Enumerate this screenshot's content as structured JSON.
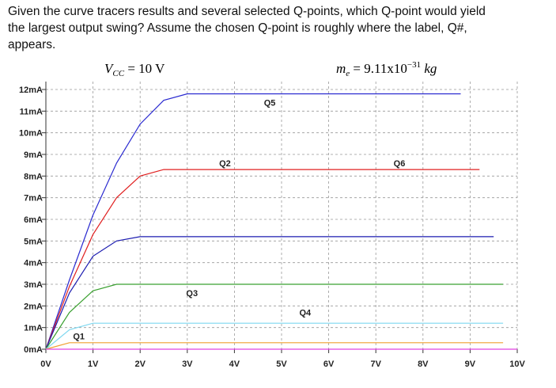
{
  "question_lines": [
    "Given the curve tracers results and several selected Q-points, which Q-point would yield",
    "the largest output swing?  Assume the chosen Q-point is roughly where the label, Q#,",
    "appears."
  ],
  "chart_data": {
    "type": "line",
    "vcc_label": {
      "main": "V",
      "sub": "CC",
      "rest": " = 10 V"
    },
    "mass_label": {
      "main": "m",
      "sub": "e",
      "rest": " = 9.11x10",
      "sup": "−31",
      "unit": " kg"
    },
    "x": [
      0,
      0.5,
      1,
      1.5,
      2,
      2.5,
      3,
      8.8,
      9.2,
      9.5,
      9.7,
      10
    ],
    "series": [
      {
        "color": "#2a2ad0",
        "values": [
          0,
          3.2,
          6.2,
          8.6,
          10.4,
          11.5,
          11.8,
          11.8,
          null,
          null,
          null,
          null
        ]
      },
      {
        "color": "#e02020",
        "values": [
          0,
          2.9,
          5.3,
          7.0,
          8.0,
          8.3,
          8.3,
          8.3,
          8.3,
          null,
          null,
          null
        ]
      },
      {
        "color": "#1c1cb0",
        "values": [
          0,
          2.6,
          4.3,
          5.0,
          5.2,
          5.2,
          5.2,
          5.2,
          5.2,
          5.2,
          null,
          null
        ]
      },
      {
        "color": "#3aa030",
        "values": [
          0,
          1.7,
          2.7,
          3.0,
          3.0,
          3.0,
          3.0,
          3.0,
          3.0,
          3.0,
          3.0,
          null
        ]
      },
      {
        "color": "#7fd8f0",
        "values": [
          0,
          0.9,
          1.2,
          1.2,
          1.2,
          1.2,
          1.2,
          1.2,
          1.2,
          1.2,
          1.2,
          null
        ]
      },
      {
        "color": "#f0a030",
        "values": [
          0,
          0.3,
          0.3,
          0.3,
          0.3,
          0.3,
          0.3,
          0.3,
          0.3,
          0.3,
          0.3,
          null
        ]
      },
      {
        "color": "#e040e0",
        "values": [
          0,
          0,
          0,
          0,
          0,
          0,
          0,
          0,
          0,
          0,
          0,
          0
        ]
      }
    ],
    "annotations": [
      {
        "text": "Q1",
        "x": 0.7,
        "y": 0.6
      },
      {
        "text": "Q2",
        "x": 3.8,
        "y": 8.6
      },
      {
        "text": "Q3",
        "x": 3.1,
        "y": 2.6
      },
      {
        "text": "Q4",
        "x": 5.5,
        "y": 1.7
      },
      {
        "text": "Q5",
        "x": 4.75,
        "y": 11.4
      },
      {
        "text": "Q6",
        "x": 7.5,
        "y": 8.6
      }
    ],
    "xlim": [
      0,
      10
    ],
    "ylim": [
      0,
      12
    ],
    "xticks": [
      {
        "value": 0,
        "label": "0V"
      },
      {
        "value": 1,
        "label": "1V"
      },
      {
        "value": 2,
        "label": "2V"
      },
      {
        "value": 3,
        "label": "3V"
      },
      {
        "value": 4,
        "label": "4V"
      },
      {
        "value": 5,
        "label": "5V"
      },
      {
        "value": 6,
        "label": "6V"
      },
      {
        "value": 7,
        "label": "7V"
      },
      {
        "value": 8,
        "label": "8V"
      },
      {
        "value": 9,
        "label": "9V"
      },
      {
        "value": 10,
        "label": "10V"
      }
    ],
    "yticks": [
      {
        "value": 0,
        "label": "0mA"
      },
      {
        "value": 1,
        "label": "1mA"
      },
      {
        "value": 2,
        "label": "2mA"
      },
      {
        "value": 3,
        "label": "3mA"
      },
      {
        "value": 4,
        "label": "4mA"
      },
      {
        "value": 5,
        "label": "5mA"
      },
      {
        "value": 6,
        "label": "6mA"
      },
      {
        "value": 7,
        "label": "7mA"
      },
      {
        "value": 8,
        "label": "8mA"
      },
      {
        "value": 9,
        "label": "9mA"
      },
      {
        "value": 10,
        "label": "10mA"
      },
      {
        "value": 11,
        "label": "11mA"
      },
      {
        "value": 12,
        "label": "12mA"
      }
    ],
    "grid": true
  }
}
